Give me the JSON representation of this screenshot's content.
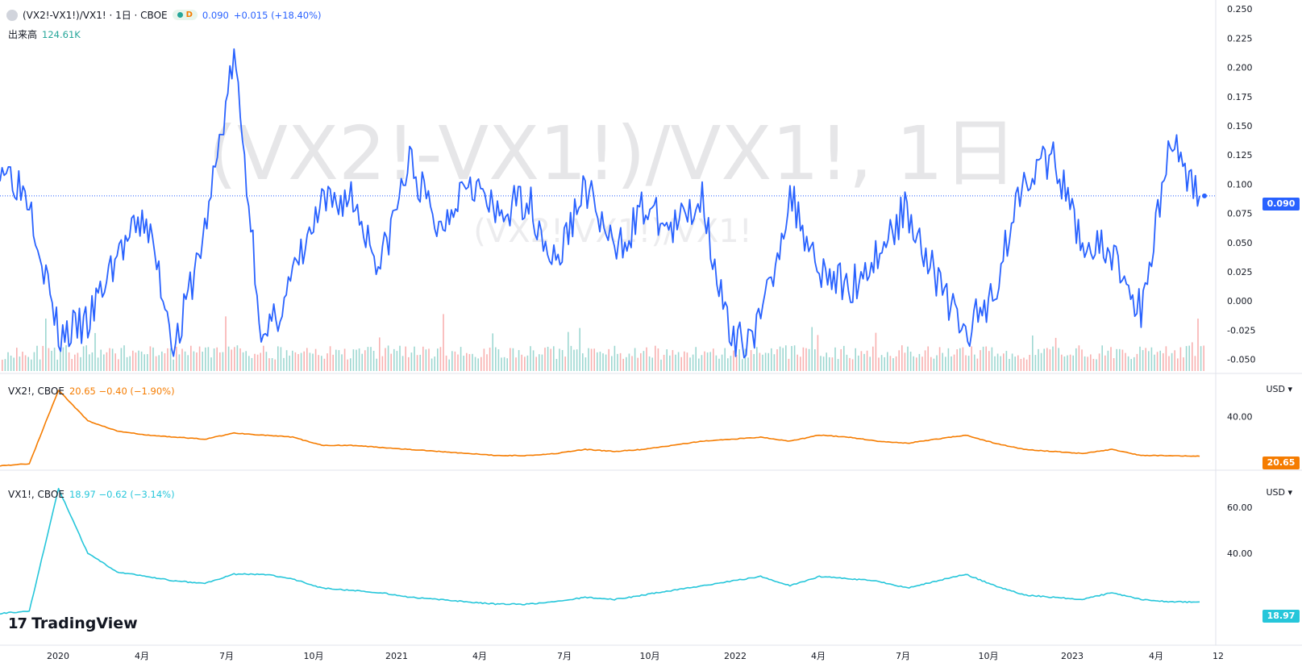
{
  "header": {
    "symbol": "(VX2!-VX1!)/VX1! · 1日 · CBOE",
    "interval_badge": "D",
    "last": "0.090",
    "change": "+0.015 (+18.40%)",
    "volume_label": "出来高",
    "volume_value": "124.61K"
  },
  "watermark": {
    "main": "(VX2!-VX1!)/VX1!, 1日",
    "sub": "(VX2!-VX1!)/VX1!"
  },
  "colors": {
    "spread": "#2962ff",
    "vx2": "#f57c00",
    "vx1": "#26c6da",
    "vol_up": "#26a69a",
    "vol_down": "#ef5350"
  },
  "panes": {
    "vx2": {
      "legend_symbol": "VX2!, CBOE",
      "legend_values": "20.65 −0.40 (−1.90%)",
      "currency": "USD",
      "last_tag": "20.65"
    },
    "vx1": {
      "legend_symbol": "VX1!, CBOE",
      "legend_values": "18.97 −0.62 (−3.14%)",
      "currency": "USD",
      "last_tag": "18.97"
    }
  },
  "main_last_tag": "0.090",
  "logo_text": "TradingView",
  "x_axis_labels": [
    "2020",
    "4月",
    "7月",
    "10月",
    "2021",
    "4月",
    "7月",
    "10月",
    "2022",
    "4月",
    "7月",
    "10月",
    "2023",
    "4月",
    "12"
  ],
  "chart_data": [
    {
      "type": "line",
      "title": "(VX2!-VX1!)/VX1! · 1日 · CBOE",
      "x": [
        "2020-01",
        "2020-02",
        "2020-03",
        "2020-04",
        "2020-05",
        "2020-06",
        "2020-07",
        "2020-08",
        "2020-09",
        "2020-10",
        "2020-11",
        "2020-12",
        "2021-01",
        "2021-02",
        "2021-03",
        "2021-04",
        "2021-05",
        "2021-06",
        "2021-07",
        "2021-08",
        "2021-09",
        "2021-10",
        "2021-11",
        "2021-12",
        "2022-01",
        "2022-02",
        "2022-03",
        "2022-04",
        "2022-05",
        "2022-06",
        "2022-07",
        "2022-08",
        "2022-09",
        "2022-10",
        "2022-11",
        "2022-12",
        "2023-01",
        "2023-02",
        "2023-03",
        "2023-04",
        "2023-05",
        "2023-06"
      ],
      "values": [
        0.12,
        0.09,
        -0.03,
        -0.02,
        0.04,
        0.07,
        -0.04,
        0.06,
        0.21,
        -0.04,
        0.02,
        0.08,
        0.09,
        0.03,
        0.12,
        0.06,
        0.11,
        0.07,
        0.09,
        0.03,
        0.1,
        0.04,
        0.08,
        0.06,
        0.09,
        -0.04,
        -0.02,
        0.09,
        0.03,
        0.01,
        0.04,
        0.08,
        0.02,
        -0.03,
        0.01,
        0.11,
        0.12,
        0.05,
        0.04,
        -0.01,
        0.14,
        0.09
      ],
      "ylim": [
        -0.06,
        0.255
      ],
      "y_ticks": [
        0.25,
        0.225,
        0.2,
        0.175,
        0.15,
        0.125,
        0.1,
        0.075,
        0.05,
        0.025,
        0.0,
        -0.025,
        -0.05
      ],
      "last_value": 0.09,
      "volume": {
        "label": "出来高",
        "last": "124.61K"
      }
    },
    {
      "type": "line",
      "title": "VX2!, CBOE",
      "x": [
        "2020-01",
        "2020-02",
        "2020-03",
        "2020-04",
        "2020-05",
        "2020-06",
        "2020-07",
        "2020-08",
        "2020-09",
        "2020-10",
        "2020-11",
        "2020-12",
        "2021-01",
        "2021-02",
        "2021-03",
        "2021-04",
        "2021-05",
        "2021-06",
        "2021-07",
        "2021-08",
        "2021-09",
        "2021-10",
        "2021-11",
        "2021-12",
        "2022-01",
        "2022-02",
        "2022-03",
        "2022-04",
        "2022-05",
        "2022-06",
        "2022-07",
        "2022-08",
        "2022-09",
        "2022-10",
        "2022-11",
        "2022-12",
        "2023-01",
        "2023-02",
        "2023-03",
        "2023-04",
        "2023-05",
        "2023-06"
      ],
      "values": [
        16,
        17,
        53,
        38,
        33,
        31,
        30,
        29,
        32,
        31,
        30,
        26,
        26,
        25,
        24,
        23,
        22,
        21,
        21,
        22,
        24,
        23,
        24,
        26,
        28,
        29,
        30,
        28,
        31,
        30,
        28,
        27,
        29,
        31,
        27,
        24,
        23,
        22,
        24,
        21,
        21,
        20.65
      ],
      "ylim": [
        15,
        60
      ],
      "y_ticks": [
        40.0
      ],
      "last_value": 20.65
    },
    {
      "type": "line",
      "title": "VX1!, CBOE",
      "x": [
        "2020-01",
        "2020-02",
        "2020-03",
        "2020-04",
        "2020-05",
        "2020-06",
        "2020-07",
        "2020-08",
        "2020-09",
        "2020-10",
        "2020-11",
        "2020-12",
        "2021-01",
        "2021-02",
        "2021-03",
        "2021-04",
        "2021-05",
        "2021-06",
        "2021-07",
        "2021-08",
        "2021-09",
        "2021-10",
        "2021-11",
        "2021-12",
        "2022-01",
        "2022-02",
        "2022-03",
        "2022-04",
        "2022-05",
        "2022-06",
        "2022-07",
        "2022-08",
        "2022-09",
        "2022-10",
        "2022-11",
        "2022-12",
        "2023-01",
        "2023-02",
        "2023-03",
        "2023-04",
        "2023-05",
        "2023-06"
      ],
      "values": [
        14,
        15,
        68,
        40,
        32,
        30,
        28,
        27,
        31,
        31,
        29,
        25,
        24,
        23,
        21,
        20,
        19,
        18,
        18,
        19,
        21,
        20,
        22,
        24,
        26,
        28,
        30,
        26,
        30,
        29,
        28,
        25,
        28,
        31,
        26,
        22,
        21,
        20,
        23,
        20,
        19,
        18.97
      ],
      "ylim": [
        10,
        75
      ],
      "y_ticks": [
        60.0,
        40.0
      ],
      "last_value": 18.97
    }
  ]
}
